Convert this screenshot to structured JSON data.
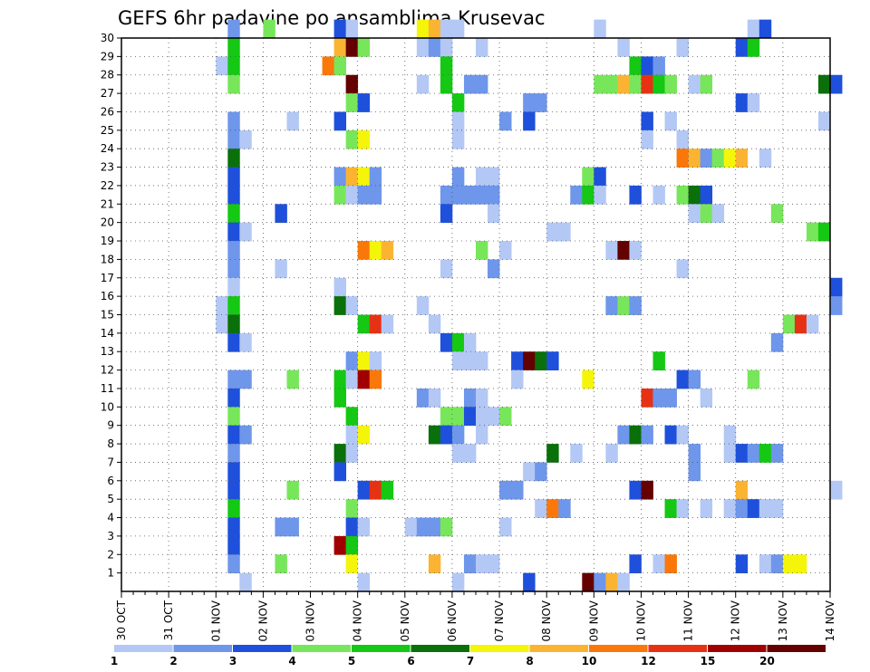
{
  "chart_data": {
    "type": "heatmap",
    "title": "GEFS 6hr padavine po ansamblima Krusevac",
    "x_tick_labels": [
      "30 OCT",
      "31 OCT",
      "01 NOV",
      "02 NOV",
      "03 NOV",
      "04 NOV",
      "05 NOV",
      "06 NOV",
      "07 NOV",
      "08 NOV",
      "09 NOV",
      "10 NOV",
      "11 NOV",
      "12 NOV",
      "13 NOV",
      "14 NOV"
    ],
    "y_tick_labels": [
      "1",
      "2",
      "3",
      "4",
      "5",
      "6",
      "7",
      "8",
      "9",
      "10",
      "11",
      "12",
      "13",
      "14",
      "15",
      "16",
      "17",
      "18",
      "19",
      "20",
      "21",
      "22",
      "23",
      "24",
      "25",
      "26",
      "27",
      "28",
      "29",
      "30"
    ],
    "x_range": [
      0,
      15
    ],
    "y_range": [
      0,
      30
    ],
    "steps_per_day": 4,
    "grid": true,
    "colorbar": {
      "placement": "bottom",
      "labels": [
        "1",
        "2",
        "3",
        "4",
        "5",
        "6",
        "7",
        "8",
        "10",
        "12",
        "15",
        "20"
      ],
      "colors": [
        "#b4c8f5",
        "#6e96eb",
        "#1e50dc",
        "#78e65a",
        "#14c814",
        "#0a700a",
        "#f5f50a",
        "#fab432",
        "#fa780a",
        "#e63214",
        "#a00000",
        "#640000"
      ]
    },
    "cells": [
      [
        30,
        9,
        1
      ],
      [
        30,
        12,
        3
      ],
      [
        30,
        18,
        2
      ],
      [
        30,
        19,
        0
      ],
      [
        30,
        25,
        6
      ],
      [
        30,
        26,
        7
      ],
      [
        30,
        27,
        0
      ],
      [
        30,
        28,
        0
      ],
      [
        30,
        40,
        0
      ],
      [
        30,
        53,
        0
      ],
      [
        30,
        54,
        2
      ],
      [
        29,
        9,
        4
      ],
      [
        29,
        18,
        7
      ],
      [
        29,
        19,
        11
      ],
      [
        29,
        20,
        3
      ],
      [
        29,
        25,
        0
      ],
      [
        29,
        26,
        1
      ],
      [
        29,
        27,
        0
      ],
      [
        29,
        30,
        0
      ],
      [
        29,
        42,
        0
      ],
      [
        29,
        47,
        0
      ],
      [
        29,
        52,
        2
      ],
      [
        29,
        53,
        4
      ],
      [
        28,
        8,
        0
      ],
      [
        28,
        9,
        4
      ],
      [
        28,
        17,
        8
      ],
      [
        28,
        18,
        3
      ],
      [
        28,
        27,
        4
      ],
      [
        28,
        43,
        4
      ],
      [
        28,
        44,
        2
      ],
      [
        28,
        45,
        1
      ],
      [
        27,
        9,
        3
      ],
      [
        27,
        19,
        11
      ],
      [
        27,
        25,
        0
      ],
      [
        27,
        27,
        4
      ],
      [
        27,
        29,
        1
      ],
      [
        27,
        30,
        1
      ],
      [
        27,
        40,
        3
      ],
      [
        27,
        41,
        3
      ],
      [
        27,
        42,
        7
      ],
      [
        27,
        43,
        3
      ],
      [
        27,
        44,
        9
      ],
      [
        27,
        45,
        4
      ],
      [
        27,
        46,
        3
      ],
      [
        27,
        48,
        0
      ],
      [
        27,
        49,
        3
      ],
      [
        27,
        59,
        5
      ],
      [
        27,
        60,
        2
      ],
      [
        26,
        19,
        3
      ],
      [
        26,
        20,
        2
      ],
      [
        26,
        28,
        4
      ],
      [
        26,
        34,
        1
      ],
      [
        26,
        35,
        1
      ],
      [
        26,
        52,
        2
      ],
      [
        26,
        53,
        0
      ],
      [
        25,
        9,
        1
      ],
      [
        25,
        14,
        0
      ],
      [
        25,
        18,
        2
      ],
      [
        25,
        28,
        0
      ],
      [
        25,
        32,
        1
      ],
      [
        25,
        34,
        2
      ],
      [
        25,
        44,
        2
      ],
      [
        25,
        46,
        0
      ],
      [
        25,
        59,
        0
      ],
      [
        24,
        9,
        1
      ],
      [
        24,
        10,
        0
      ],
      [
        24,
        19,
        3
      ],
      [
        24,
        20,
        6
      ],
      [
        24,
        28,
        0
      ],
      [
        24,
        44,
        0
      ],
      [
        24,
        47,
        0
      ],
      [
        23,
        9,
        5
      ],
      [
        23,
        47,
        8
      ],
      [
        23,
        48,
        7
      ],
      [
        23,
        49,
        1
      ],
      [
        23,
        50,
        3
      ],
      [
        23,
        51,
        6
      ],
      [
        23,
        52,
        7
      ],
      [
        23,
        54,
        0
      ],
      [
        22,
        9,
        2
      ],
      [
        22,
        18,
        1
      ],
      [
        22,
        19,
        7
      ],
      [
        22,
        20,
        6
      ],
      [
        22,
        21,
        1
      ],
      [
        22,
        28,
        1
      ],
      [
        22,
        30,
        0
      ],
      [
        22,
        31,
        0
      ],
      [
        22,
        39,
        3
      ],
      [
        22,
        40,
        2
      ],
      [
        21,
        9,
        2
      ],
      [
        21,
        18,
        3
      ],
      [
        21,
        19,
        0
      ],
      [
        21,
        20,
        1
      ],
      [
        21,
        21,
        1
      ],
      [
        21,
        27,
        1
      ],
      [
        21,
        28,
        1
      ],
      [
        21,
        29,
        1
      ],
      [
        21,
        30,
        1
      ],
      [
        21,
        31,
        1
      ],
      [
        21,
        38,
        1
      ],
      [
        21,
        39,
        4
      ],
      [
        21,
        40,
        0
      ],
      [
        21,
        43,
        2
      ],
      [
        21,
        45,
        0
      ],
      [
        21,
        47,
        3
      ],
      [
        21,
        48,
        5
      ],
      [
        21,
        49,
        2
      ],
      [
        20,
        9,
        4
      ],
      [
        20,
        13,
        2
      ],
      [
        20,
        27,
        2
      ],
      [
        20,
        31,
        0
      ],
      [
        20,
        48,
        0
      ],
      [
        20,
        49,
        3
      ],
      [
        20,
        50,
        0
      ],
      [
        20,
        55,
        3
      ],
      [
        19,
        9,
        2
      ],
      [
        19,
        10,
        0
      ],
      [
        19,
        36,
        0
      ],
      [
        19,
        37,
        0
      ],
      [
        19,
        58,
        3
      ],
      [
        19,
        59,
        4
      ],
      [
        18,
        9,
        1
      ],
      [
        18,
        20,
        8
      ],
      [
        18,
        21,
        6
      ],
      [
        18,
        22,
        7
      ],
      [
        18,
        30,
        3
      ],
      [
        18,
        32,
        0
      ],
      [
        18,
        41,
        0
      ],
      [
        18,
        42,
        11
      ],
      [
        18,
        43,
        0
      ],
      [
        17,
        9,
        1
      ],
      [
        17,
        13,
        0
      ],
      [
        17,
        27,
        0
      ],
      [
        17,
        31,
        1
      ],
      [
        17,
        47,
        0
      ],
      [
        16,
        9,
        0
      ],
      [
        16,
        18,
        0
      ],
      [
        16,
        60,
        2
      ],
      [
        15,
        8,
        0
      ],
      [
        15,
        9,
        4
      ],
      [
        15,
        18,
        5
      ],
      [
        15,
        19,
        0
      ],
      [
        15,
        25,
        0
      ],
      [
        15,
        41,
        1
      ],
      [
        15,
        42,
        3
      ],
      [
        15,
        43,
        1
      ],
      [
        15,
        60,
        1
      ],
      [
        14,
        8,
        0
      ],
      [
        14,
        9,
        5
      ],
      [
        14,
        20,
        4
      ],
      [
        14,
        21,
        9
      ],
      [
        14,
        22,
        0
      ],
      [
        14,
        26,
        0
      ],
      [
        14,
        56,
        3
      ],
      [
        14,
        57,
        9
      ],
      [
        14,
        58,
        0
      ],
      [
        13,
        9,
        2
      ],
      [
        13,
        10,
        0
      ],
      [
        13,
        27,
        2
      ],
      [
        13,
        28,
        4
      ],
      [
        13,
        29,
        0
      ],
      [
        13,
        55,
        1
      ],
      [
        12,
        19,
        1
      ],
      [
        12,
        20,
        6
      ],
      [
        12,
        21,
        0
      ],
      [
        12,
        28,
        0
      ],
      [
        12,
        29,
        0
      ],
      [
        12,
        30,
        0
      ],
      [
        12,
        33,
        2
      ],
      [
        12,
        34,
        11
      ],
      [
        12,
        35,
        5
      ],
      [
        12,
        36,
        2
      ],
      [
        12,
        45,
        4
      ],
      [
        11,
        9,
        1
      ],
      [
        11,
        10,
        1
      ],
      [
        11,
        14,
        3
      ],
      [
        11,
        18,
        4
      ],
      [
        11,
        19,
        0
      ],
      [
        11,
        20,
        10
      ],
      [
        11,
        21,
        8
      ],
      [
        11,
        33,
        0
      ],
      [
        11,
        39,
        6
      ],
      [
        11,
        47,
        2
      ],
      [
        11,
        48,
        1
      ],
      [
        11,
        53,
        3
      ],
      [
        10,
        9,
        2
      ],
      [
        10,
        18,
        4
      ],
      [
        10,
        25,
        1
      ],
      [
        10,
        26,
        0
      ],
      [
        10,
        29,
        1
      ],
      [
        10,
        30,
        0
      ],
      [
        10,
        44,
        9
      ],
      [
        10,
        45,
        1
      ],
      [
        10,
        46,
        1
      ],
      [
        10,
        49,
        0
      ],
      [
        9,
        9,
        3
      ],
      [
        9,
        19,
        4
      ],
      [
        9,
        27,
        3
      ],
      [
        9,
        28,
        3
      ],
      [
        9,
        29,
        2
      ],
      [
        9,
        30,
        0
      ],
      [
        9,
        31,
        0
      ],
      [
        9,
        32,
        3
      ],
      [
        8,
        9,
        2
      ],
      [
        8,
        10,
        1
      ],
      [
        8,
        19,
        0
      ],
      [
        8,
        20,
        6
      ],
      [
        8,
        26,
        5
      ],
      [
        8,
        27,
        2
      ],
      [
        8,
        28,
        1
      ],
      [
        8,
        30,
        0
      ],
      [
        8,
        42,
        1
      ],
      [
        8,
        43,
        5
      ],
      [
        8,
        44,
        1
      ],
      [
        8,
        46,
        2
      ],
      [
        8,
        47,
        0
      ],
      [
        8,
        51,
        0
      ],
      [
        7,
        9,
        1
      ],
      [
        7,
        18,
        5
      ],
      [
        7,
        19,
        0
      ],
      [
        7,
        28,
        0
      ],
      [
        7,
        29,
        0
      ],
      [
        7,
        36,
        5
      ],
      [
        7,
        38,
        0
      ],
      [
        7,
        41,
        0
      ],
      [
        7,
        48,
        1
      ],
      [
        7,
        51,
        0
      ],
      [
        7,
        52,
        2
      ],
      [
        7,
        53,
        1
      ],
      [
        7,
        54,
        4
      ],
      [
        7,
        55,
        1
      ],
      [
        6,
        9,
        2
      ],
      [
        6,
        18,
        2
      ],
      [
        6,
        34,
        0
      ],
      [
        6,
        35,
        1
      ],
      [
        6,
        48,
        1
      ],
      [
        5,
        9,
        2
      ],
      [
        5,
        14,
        3
      ],
      [
        5,
        20,
        2
      ],
      [
        5,
        21,
        9
      ],
      [
        5,
        22,
        4
      ],
      [
        5,
        32,
        1
      ],
      [
        5,
        33,
        1
      ],
      [
        5,
        43,
        2
      ],
      [
        5,
        44,
        11
      ],
      [
        5,
        52,
        7
      ],
      [
        5,
        60,
        0
      ],
      [
        4,
        9,
        4
      ],
      [
        4,
        19,
        3
      ],
      [
        4,
        35,
        0
      ],
      [
        4,
        36,
        8
      ],
      [
        4,
        37,
        1
      ],
      [
        4,
        46,
        4
      ],
      [
        4,
        47,
        0
      ],
      [
        4,
        49,
        0
      ],
      [
        4,
        51,
        0
      ],
      [
        4,
        52,
        1
      ],
      [
        4,
        53,
        2
      ],
      [
        4,
        54,
        0
      ],
      [
        4,
        55,
        0
      ],
      [
        3,
        9,
        2
      ],
      [
        3,
        13,
        1
      ],
      [
        3,
        14,
        1
      ],
      [
        3,
        19,
        2
      ],
      [
        3,
        20,
        0
      ],
      [
        3,
        24,
        0
      ],
      [
        3,
        25,
        1
      ],
      [
        3,
        26,
        1
      ],
      [
        3,
        27,
        3
      ],
      [
        3,
        32,
        0
      ],
      [
        2,
        9,
        2
      ],
      [
        2,
        18,
        10
      ],
      [
        2,
        19,
        4
      ],
      [
        1,
        9,
        1
      ],
      [
        1,
        13,
        3
      ],
      [
        1,
        19,
        6
      ],
      [
        1,
        26,
        7
      ],
      [
        1,
        29,
        1
      ],
      [
        1,
        30,
        0
      ],
      [
        1,
        31,
        0
      ],
      [
        1,
        43,
        2
      ],
      [
        1,
        45,
        0
      ],
      [
        1,
        46,
        8
      ],
      [
        1,
        52,
        2
      ],
      [
        1,
        54,
        0
      ],
      [
        1,
        55,
        1
      ],
      [
        1,
        56,
        6
      ],
      [
        1,
        57,
        6
      ],
      [
        0,
        10,
        0
      ],
      [
        0,
        20,
        0
      ],
      [
        0,
        28,
        0
      ],
      [
        0,
        34,
        2
      ],
      [
        0,
        39,
        11
      ],
      [
        0,
        40,
        1
      ],
      [
        0,
        41,
        7
      ],
      [
        0,
        42,
        0
      ]
    ]
  }
}
